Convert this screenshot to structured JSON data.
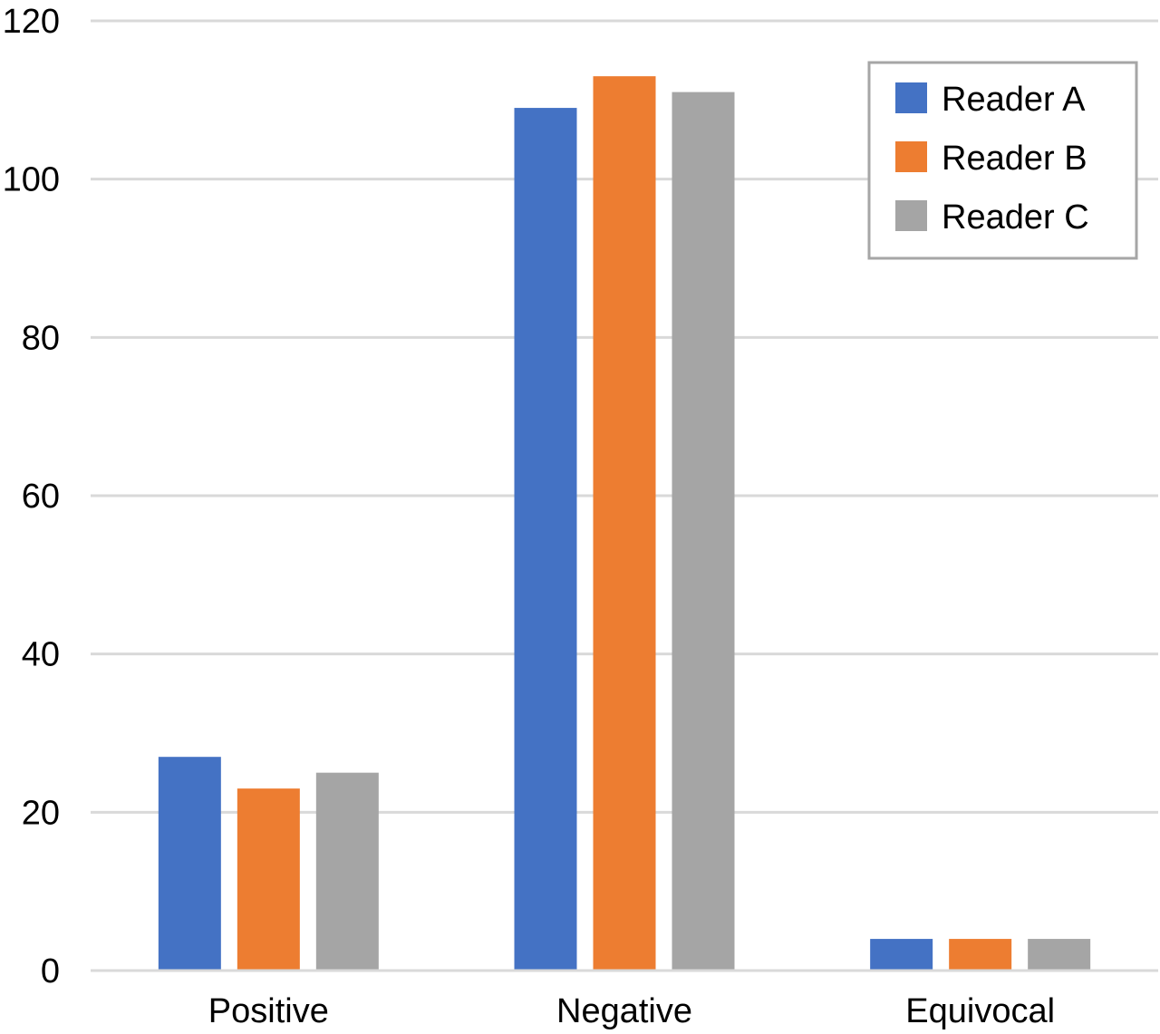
{
  "chart_data": {
    "type": "bar",
    "title": "",
    "xlabel": "",
    "ylabel": "",
    "categories": [
      "Positive",
      "Negative",
      "Equivocal"
    ],
    "series": [
      {
        "name": "Reader A",
        "values": [
          27,
          109,
          4
        ],
        "color": "#4472C4"
      },
      {
        "name": "Reader B",
        "values": [
          23,
          113,
          4
        ],
        "color": "#ED7D31"
      },
      {
        "name": "Reader C",
        "values": [
          25,
          111,
          4
        ],
        "color": "#A5A5A5"
      }
    ],
    "ylim": [
      0,
      120
    ],
    "yticks": [
      0,
      20,
      40,
      60,
      80,
      100,
      120
    ],
    "grid": true,
    "legend_position": "top-right",
    "gridline_color": "#D9D9D9",
    "axis_color": "#D9D9D9"
  }
}
